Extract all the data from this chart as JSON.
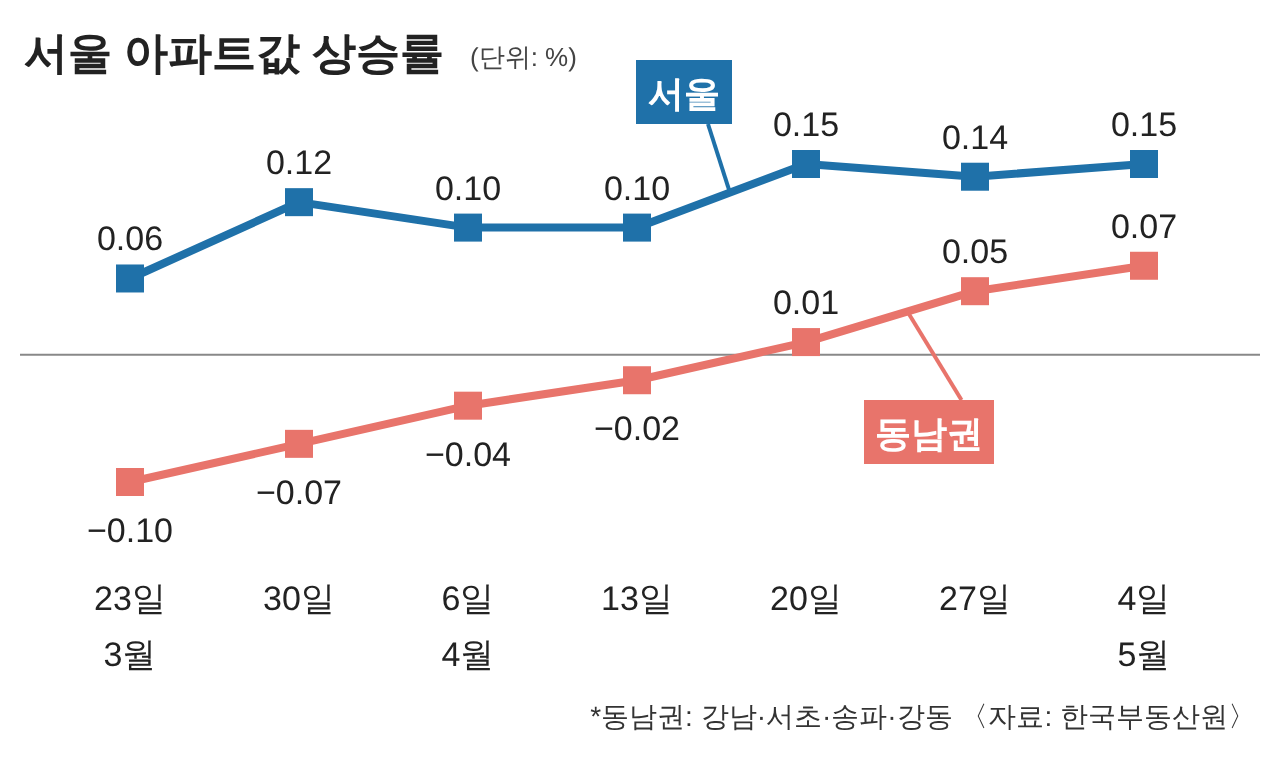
{
  "chart_data": {
    "type": "line",
    "title": "서울 아파트값 상승률",
    "subtitle": "(단위: %)",
    "categories": [
      "23일\n3월",
      "30일",
      "6일\n4월",
      "13일",
      "20일",
      "27일",
      "4일\n5월"
    ],
    "series": [
      {
        "name": "서울",
        "color": "#1f71a9",
        "values": [
          0.06,
          0.12,
          0.1,
          0.1,
          0.15,
          0.14,
          0.15
        ],
        "value_labels": [
          "0.06",
          "0.12",
          "0.10",
          "0.10",
          "0.15",
          "0.14",
          "0.15"
        ]
      },
      {
        "name": "동남권",
        "color": "#e8746b",
        "values": [
          -0.1,
          -0.07,
          -0.04,
          -0.02,
          0.01,
          0.05,
          0.07
        ],
        "value_labels": [
          "−0.10",
          "−0.07",
          "−0.04",
          "−0.02",
          "0.01",
          "0.05",
          "0.07"
        ]
      }
    ],
    "ref_lines": [
      {
        "axis": "y",
        "value": 0,
        "color": "#888888"
      }
    ],
    "marker": "square",
    "line_style": "solid",
    "annotations": [
      "*동남권: 강남·서초·송파·강동 〈자료: 한국부동산원〉"
    ]
  }
}
